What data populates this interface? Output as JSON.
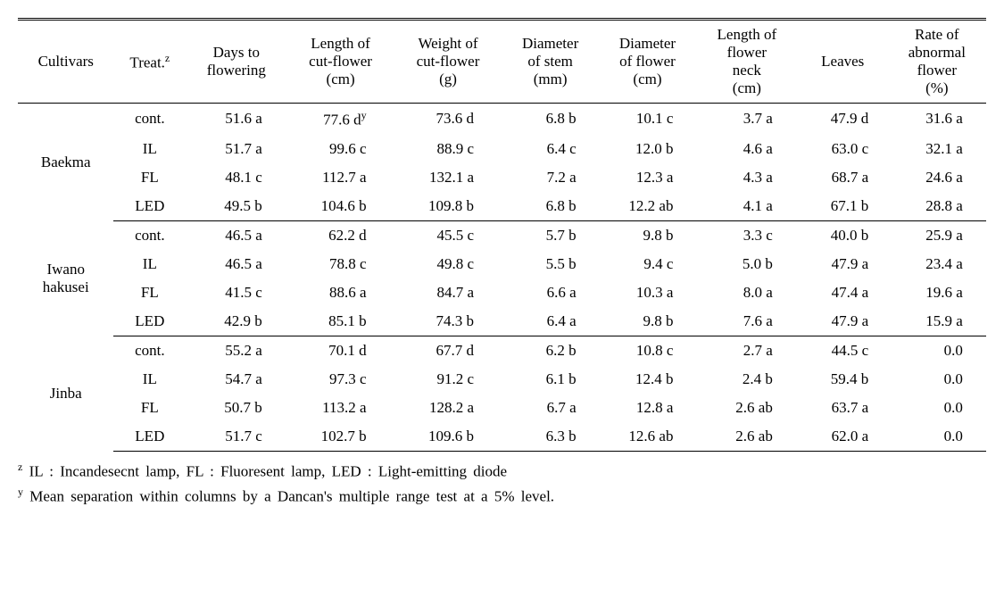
{
  "columns": [
    {
      "key": "cultivar",
      "label": "Cultivars"
    },
    {
      "key": "treat",
      "label_html": "Treat.<span class='sup'>z</span>"
    },
    {
      "key": "days",
      "label": "Days to\nflowering"
    },
    {
      "key": "len",
      "label": "Length of\ncut-flower\n(cm)"
    },
    {
      "key": "wt",
      "label": "Weight of\ncut-flower\n(g)"
    },
    {
      "key": "dstem",
      "label": "Diameter\nof stem\n(mm)"
    },
    {
      "key": "dflower",
      "label": "Diameter\nof flower\n(cm)"
    },
    {
      "key": "neck",
      "label": "Length of\nflower\nneck\n(cm)"
    },
    {
      "key": "leaves",
      "label": "Leaves"
    },
    {
      "key": "abnorm",
      "label": "Rate of\nabnormal\nflower\n(%)"
    }
  ],
  "groups": [
    {
      "cultivar": "Baekma",
      "rows": [
        {
          "treat": "cont.",
          "days": "51.6 a",
          "len_html": "77.6 d<span class='sup'>y</span>",
          "len": "",
          "wt": "73.6 d",
          "dstem": "6.8 b",
          "dflower": "10.1 c",
          "neck": "3.7 a",
          "leaves": "47.9 d",
          "abnorm": "31.6 a"
        },
        {
          "treat": "IL",
          "days": "51.7 a",
          "len": "99.6 c",
          "wt": "88.9 c",
          "dstem": "6.4 c",
          "dflower": "12.0 b",
          "neck": "4.6 a",
          "leaves": "63.0 c",
          "abnorm": "32.1 a"
        },
        {
          "treat": "FL",
          "days": "48.1 c",
          "len": "112.7 a",
          "wt": "132.1 a",
          "dstem": "7.2 a",
          "dflower": "12.3 a",
          "neck": "4.3 a",
          "leaves": "68.7 a",
          "abnorm": "24.6 a"
        },
        {
          "treat": "LED",
          "days": "49.5 b",
          "len": "104.6 b",
          "wt": "109.8 b",
          "dstem": "6.8 b",
          "dflower": "12.2 ab",
          "neck": "4.1 a",
          "leaves": "67.1 b",
          "abnorm": "28.8 a"
        }
      ]
    },
    {
      "cultivar": "Iwano\nhakusei",
      "rows": [
        {
          "treat": "cont.",
          "days": "46.5 a",
          "len": "62.2 d",
          "wt": "45.5 c",
          "dstem": "5.7 b",
          "dflower": "9.8 b",
          "neck": "3.3 c",
          "leaves": "40.0 b",
          "abnorm": "25.9 a"
        },
        {
          "treat": "IL",
          "days": "46.5 a",
          "len": "78.8 c",
          "wt": "49.8 c",
          "dstem": "5.5 b",
          "dflower": "9.4 c",
          "neck": "5.0 b",
          "leaves": "47.9 a",
          "abnorm": "23.4 a"
        },
        {
          "treat": "FL",
          "days": "41.5 c",
          "len": "88.6 a",
          "wt": "84.7 a",
          "dstem": "6.6 a",
          "dflower": "10.3 a",
          "neck": "8.0 a",
          "leaves": "47.4 a",
          "abnorm": "19.6 a"
        },
        {
          "treat": "LED",
          "days": "42.9 b",
          "len": "85.1 b",
          "wt": "74.3 b",
          "dstem": "6.4 a",
          "dflower": "9.8 b",
          "neck": "7.6 a",
          "leaves": "47.9 a",
          "abnorm": "15.9 a"
        }
      ]
    },
    {
      "cultivar": "Jinba",
      "rows": [
        {
          "treat": "cont.",
          "days": "55.2 a",
          "len": "70.1 d",
          "wt": "67.7 d",
          "dstem": "6.2 b",
          "dflower": "10.8 c",
          "neck": "2.7 a",
          "leaves": "44.5 c",
          "abnorm": "0.0"
        },
        {
          "treat": "IL",
          "days": "54.7 a",
          "len": "97.3 c",
          "wt": "91.2 c",
          "dstem": "6.1 b",
          "dflower": "12.4 b",
          "neck": "2.4 b",
          "leaves": "59.4 b",
          "abnorm": "0.0"
        },
        {
          "treat": "FL",
          "days": "50.7 b",
          "len": "113.2 a",
          "wt": "128.2 a",
          "dstem": "6.7 a",
          "dflower": "12.8 a",
          "neck": "2.6 ab",
          "leaves": "63.7 a",
          "abnorm": "0.0"
        },
        {
          "treat": "LED",
          "days": "51.7 c",
          "len": "102.7 b",
          "wt": "109.6 b",
          "dstem": "6.3 b",
          "dflower": "12.6 ab",
          "neck": "2.6 ab",
          "leaves": "62.0 a",
          "abnorm": "0.0"
        }
      ]
    }
  ],
  "footnotes": {
    "z_html": "<span class='sup'>z</span> IL : Incandesecnt lamp, FL : Fluoresent lamp, LED : Light-emitting diode",
    "y_html": "<span class='sup'>y</span> Mean separation within columns by a Dancan's multiple range test at a 5% level."
  },
  "valcols": [
    "days",
    "len",
    "wt",
    "dstem",
    "dflower",
    "neck",
    "leaves",
    "abnorm"
  ]
}
